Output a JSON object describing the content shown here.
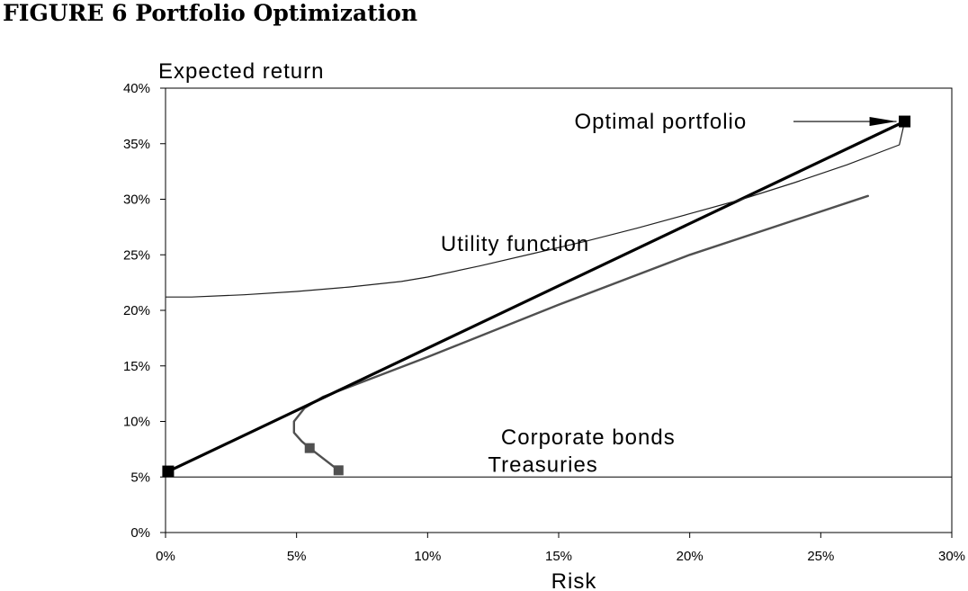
{
  "figure_title": "FIGURE 6 Portfolio Optimization",
  "chart_data": {
    "type": "line",
    "title": "FIGURE 6 Portfolio Optimization",
    "xlabel": "Risk",
    "ylabel": "Expected return",
    "xlim": [
      0,
      30
    ],
    "ylim": [
      0,
      40
    ],
    "x_unit": "%",
    "y_unit": "%",
    "x_ticks": [
      "0%",
      "5%",
      "10%",
      "15%",
      "20%",
      "25%",
      "30%"
    ],
    "y_ticks": [
      "0%",
      "5%",
      "10%",
      "15%",
      "20%",
      "25%",
      "30%",
      "35%",
      "40%"
    ],
    "grid": false,
    "series": [
      {
        "key": "efficient_frontier",
        "color": "#505050",
        "points": [
          [
            6.6,
            5.6
          ],
          [
            5.5,
            7.6
          ],
          [
            5.2,
            8.2
          ],
          [
            4.9,
            9.0
          ],
          [
            4.9,
            10.0
          ],
          [
            5.3,
            11.2
          ],
          [
            6.0,
            12.2
          ],
          [
            7.0,
            13.1
          ],
          [
            8.0,
            14.0
          ],
          [
            10.0,
            15.8
          ],
          [
            15.0,
            20.5
          ],
          [
            20.0,
            25.0
          ],
          [
            26.8,
            30.3
          ]
        ]
      },
      {
        "key": "capital_market_line",
        "color": "#000000",
        "points": [
          [
            0.1,
            5.5
          ],
          [
            28.2,
            37.0
          ]
        ]
      },
      {
        "key": "utility_function",
        "color": "#202020",
        "points": [
          [
            0,
            21.2
          ],
          [
            1,
            21.2
          ],
          [
            3,
            21.4
          ],
          [
            5,
            21.7
          ],
          [
            7,
            22.1
          ],
          [
            9,
            22.6
          ],
          [
            10,
            23.0
          ],
          [
            12,
            24.0
          ],
          [
            14,
            25.1
          ],
          [
            16,
            26.2
          ],
          [
            18,
            27.4
          ],
          [
            20,
            28.7
          ],
          [
            22,
            30.0
          ],
          [
            24,
            31.5
          ],
          [
            26,
            33.1
          ],
          [
            28,
            34.9
          ],
          [
            28.2,
            37.0
          ]
        ]
      },
      {
        "key": "risk_free_rate",
        "color": "#000000",
        "points": [
          [
            0,
            5
          ],
          [
            30,
            5
          ]
        ]
      }
    ],
    "markers": [
      {
        "x": 0.1,
        "y": 5.5,
        "color": "#000000"
      },
      {
        "x": 5.5,
        "y": 7.6,
        "color": "#505050"
      },
      {
        "x": 6.6,
        "y": 5.6,
        "color": "#505050"
      },
      {
        "x": 28.2,
        "y": 37.0,
        "color": "#000000"
      }
    ],
    "annotations": [
      {
        "text": "Optimal portfolio",
        "x": 15.6,
        "y": 37.0,
        "arrow_to": [
          28.2,
          37.0
        ]
      },
      {
        "text": "Utility function",
        "x": 10.5,
        "y": 26.0
      },
      {
        "text": "Corporate bonds",
        "x": 12.8,
        "y": 8.6
      },
      {
        "text": "Treasuries",
        "x": 12.3,
        "y": 6.1
      }
    ]
  }
}
